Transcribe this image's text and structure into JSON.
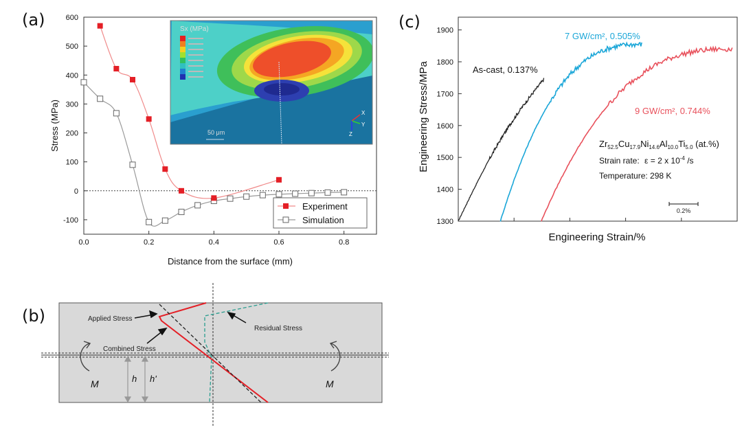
{
  "chart_data": [
    {
      "panel_label": "(a)",
      "type": "line",
      "xlabel": "Distance from the surface (mm)",
      "ylabel": "Stress (MPa)",
      "xlim": [
        0.0,
        0.9
      ],
      "ylim": [
        -150,
        600
      ],
      "xticks": [
        "0.0",
        "0.2",
        "0.4",
        "0.6",
        "0.8"
      ],
      "yticks": [
        "600",
        "500",
        "400",
        "300",
        "200",
        "100",
        "0",
        "-100"
      ],
      "legend_position": "bottom-right",
      "series": [
        {
          "name": "Experiment",
          "color": "#e41f26",
          "marker": "filled-square",
          "x": [
            0.05,
            0.1,
            0.15,
            0.2,
            0.25,
            0.3,
            0.4,
            0.6
          ],
          "y": [
            570,
            422,
            384,
            248,
            75,
            0,
            -25,
            38
          ]
        },
        {
          "name": "Simulation",
          "color": "#888888",
          "marker": "open-square",
          "x": [
            0.0,
            0.05,
            0.1,
            0.15,
            0.2,
            0.25,
            0.3,
            0.35,
            0.4,
            0.45,
            0.5,
            0.55,
            0.6,
            0.65,
            0.7,
            0.75,
            0.8
          ],
          "y": [
            375,
            318,
            268,
            90,
            -108,
            -103,
            -73,
            -50,
            -35,
            -27,
            -20,
            -15,
            -12,
            -10,
            -8,
            -6,
            -5
          ]
        }
      ],
      "inset": {
        "title": "Sx (MPa)",
        "scale": "50 μm",
        "axes": [
          "X",
          "Y",
          "Z"
        ]
      }
    },
    {
      "panel_label": "(c)",
      "type": "line",
      "xlabel": "Engineering Strain/%",
      "ylabel": "Engineering Stress/MPa",
      "ylim": [
        1300,
        1940
      ],
      "yticks": [
        "1900",
        "1800",
        "1700",
        "1600",
        "1500",
        "1400",
        "1300"
      ],
      "scale_bar": "0.2%",
      "series": [
        {
          "label": "As-cast, 0.137%",
          "color": "#222222",
          "x_start": 0.0,
          "x_end": 0.69,
          "y_start": 1300,
          "y_end": 1745
        },
        {
          "label": "7 GW/cm², 0.505%",
          "color": "#1aa6d8",
          "x_start": 0.34,
          "x_end": 1.48,
          "y_start": 1300,
          "y_end": 1855
        },
        {
          "label": "9 GW/cm², 0.744%",
          "color": "#e8505b",
          "x_start": 0.67,
          "x_end": 2.21,
          "y_start": 1300,
          "y_end": 1840
        }
      ],
      "annotation_lines": [
        "Strain rate:",
        "Temperature: 298 K"
      ],
      "annotation_parts": {
        "comp_parts": [
          "Zr",
          "52.5",
          "Cu",
          "17.9",
          "Ni",
          "14.6",
          "Al",
          "10.0",
          "Ti",
          "5.0",
          " (at.%)"
        ],
        "rate_eq": "ε = 2 x 10",
        "rate_exp": "-4",
        "rate_unit": " /s"
      }
    }
  ],
  "diagram": {
    "panel_label": "(b)",
    "labels": [
      "Applied Stress",
      "Combined Stress",
      "Residual Stress"
    ],
    "moment_label": "M",
    "h_label": "h",
    "h_prime_label": "h'"
  }
}
